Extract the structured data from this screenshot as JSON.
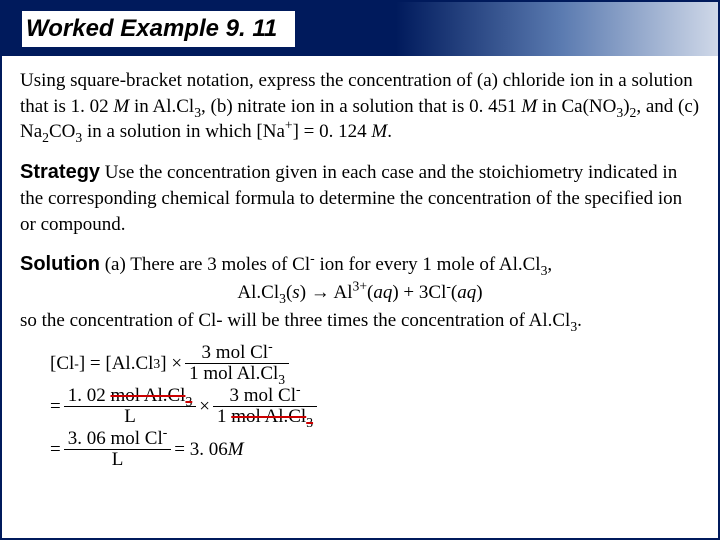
{
  "title": "Worked Example 9. 11",
  "problem": {
    "p1": "Using square-bracket notation, express the concentration of (a) chloride ion in a solution that is 1. 02 ",
    "M1": "M",
    "p2": " in Al.Cl",
    "sub3a": "3",
    "p3": ", (b) nitrate ion in a solution that is 0. 451 ",
    "M2": "M",
    "p4": " in Ca(NO",
    "sub3b": "3",
    "p5": ")",
    "sub2a": "2",
    "p6": ", and (c) Na",
    "sub2b": "2",
    "p7": "CO",
    "sub3c": "3",
    "p8": " in a solution in which [Na",
    "supPlus": "+",
    "p9": "] = 0. 124 ",
    "M3": "M",
    "p10": "."
  },
  "strategy": {
    "label": "Strategy",
    "text": " Use the concentration given in each case and the stoichiometry indicated in the corresponding chemical formula to determine the concentration of the specified ion or compound."
  },
  "solution": {
    "label": "Solution",
    "lineA_1": " (a) There are 3 moles of Cl",
    "supMinus1": "-",
    "lineA_2": " ion for every 1 mole of Al.Cl",
    "sub3d": "3",
    "lineA_3": ",",
    "reaction_1": "Al.Cl",
    "sub3e": "3",
    "reaction_2": "(",
    "s_it": "s",
    "reaction_3": ") → Al",
    "sup3p": "3+",
    "reaction_4": "(",
    "aq1": "aq",
    "reaction_5": ") + 3Cl",
    "supMinus2": "-",
    "reaction_6": "(",
    "aq2": "aq",
    "reaction_7": ")",
    "lineB": "so the concentration of Cl- will be three times the concentration of Al.Cl",
    "sub3f": "3",
    "lineB_end": "."
  },
  "equation": {
    "lhs1": "[Cl",
    "supM3": "-",
    "lhs2": "] = [Al.Cl",
    "sub3g": "3",
    "lhs3": "] × ",
    "frac1_num": "3 mol Cl",
    "frac1_num_sup": "-",
    "frac1_den": "1 mol Al.Cl",
    "frac1_den_sub": "3",
    "eq2_pre": "= ",
    "frac2_num_a": "1. 02 ",
    "frac2_num_strike": "mol Al.Cl",
    "frac2_num_sub": "3",
    "frac2_den": "L",
    "times": " × ",
    "frac3_num": "3 mol Cl",
    "frac3_num_sup": "-",
    "frac3_den_a": "1 ",
    "frac3_den_strike": "mol Al.Cl",
    "frac3_den_sub": "3",
    "eq3_pre": "= ",
    "frac4_num": "3. 06 mol Cl",
    "frac4_num_sup": "-",
    "frac4_den": "L",
    "eq3_post": " = 3. 06 ",
    "M4": "M"
  }
}
